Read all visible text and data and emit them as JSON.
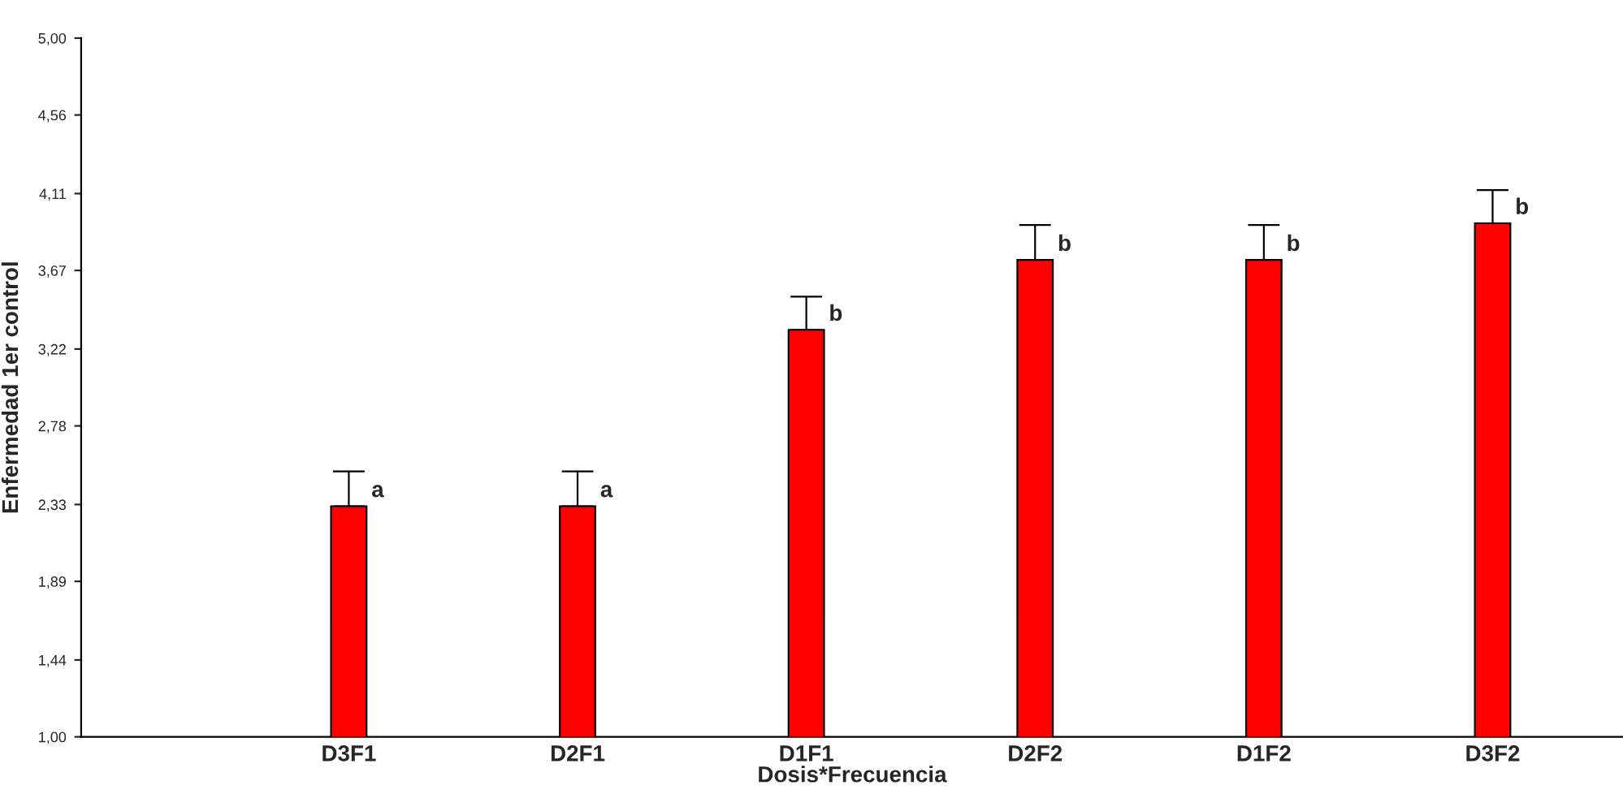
{
  "chart_data": {
    "type": "bar",
    "xlabel": "Dosis*Frecuencia",
    "ylabel": "Enfermedad 1er control",
    "categories": [
      "D3F1",
      "D2F1",
      "D1F1",
      "D2F2",
      "D1F2",
      "D3F2"
    ],
    "values": [
      2.32,
      2.32,
      3.33,
      3.73,
      3.73,
      3.94
    ],
    "errors": [
      [
        2.32,
        2.52
      ],
      [
        2.32,
        2.52
      ],
      [
        3.33,
        3.52
      ],
      [
        3.73,
        3.93
      ],
      [
        3.73,
        3.93
      ],
      [
        3.94,
        4.13
      ]
    ],
    "color": "#ff0000",
    "ylim": [
      1.0,
      5.0
    ],
    "yticks": [
      {
        "value": 1.0,
        "label": "1,00"
      },
      {
        "value": 1.44,
        "label": "1,44"
      },
      {
        "value": 1.89,
        "label": "1,89"
      },
      {
        "value": 2.33,
        "label": "2,33"
      },
      {
        "value": 2.78,
        "label": "2,78"
      },
      {
        "value": 3.22,
        "label": "3,22"
      },
      {
        "value": 3.67,
        "label": "3,67"
      },
      {
        "value": 4.11,
        "label": "4,11"
      },
      {
        "value": 4.56,
        "label": "4,56"
      },
      {
        "value": 5.0,
        "label": "5,00"
      }
    ],
    "grid": false,
    "annotations": [
      {
        "text": "a",
        "x": "D3F1",
        "y": 2.32
      },
      {
        "text": "a",
        "x": "D2F1",
        "y": 2.32
      },
      {
        "text": "b",
        "x": "D1F1",
        "y": 3.33
      },
      {
        "text": "b",
        "x": "D2F2",
        "y": 3.73
      },
      {
        "text": "b",
        "x": "D1F2",
        "y": 3.73
      },
      {
        "text": "b",
        "x": "D3F2",
        "y": 3.94
      }
    ]
  }
}
